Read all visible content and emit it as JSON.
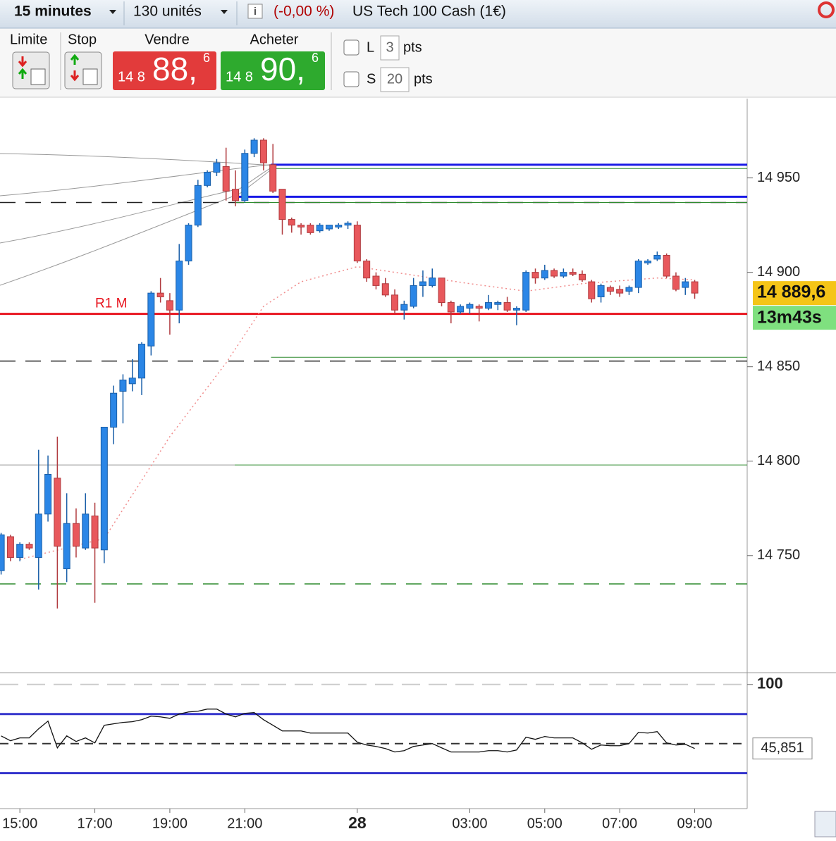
{
  "toolbar": {
    "timeframe": "15 minutes",
    "quantity": "130 unités",
    "change": "(-0,00 %)",
    "instrument": "US Tech 100 Cash (1€)"
  },
  "order_panel": {
    "limit_label": "Limite",
    "stop_label": "Stop",
    "sell": {
      "label": "Vendre",
      "prefix": "14 8",
      "big": "88,",
      "sup": "6"
    },
    "buy": {
      "label": "Acheter",
      "prefix": "14 8",
      "big": "90,",
      "sup": "6"
    },
    "options": [
      {
        "label": "L",
        "value": 3,
        "unit": "pts"
      },
      {
        "label": "S",
        "value": 20,
        "unit": "pts"
      }
    ]
  },
  "chart_data": {
    "type": "candlestick",
    "x": [
      14.5,
      14.75,
      15,
      15.25,
      15.5,
      15.75,
      16,
      16.25,
      16.5,
      16.75,
      17,
      17.25,
      17.5,
      17.75,
      18,
      18.25,
      18.5,
      18.75,
      19,
      19.25,
      19.5,
      19.75,
      20,
      20.25,
      20.5,
      20.75,
      21,
      21.25,
      21.5,
      21.75,
      22,
      22.25,
      22.5,
      22.75,
      23,
      23.25,
      23.5,
      23.75,
      24,
      24.25,
      24.5,
      24.75,
      25,
      25.25,
      25.5,
      25.75,
      26,
      26.25,
      26.5,
      26.75,
      27,
      27.25,
      27.5,
      27.75,
      28,
      28.25,
      28.5,
      28.75,
      29,
      29.25,
      29.5,
      29.75,
      30,
      30.25,
      30.5,
      30.75,
      31,
      31.25,
      31.5,
      31.75,
      32,
      32.25,
      32.5,
      32.75,
      33
    ],
    "open": [
      14742,
      14760,
      14749,
      14756,
      14749,
      14772,
      14791,
      14743,
      14767,
      14754,
      14771,
      14753,
      14818,
      14837,
      14841,
      14844,
      14861,
      14889,
      14885,
      14880,
      14906,
      14925,
      14946,
      14953,
      14956,
      14944,
      14938,
      14963,
      14970,
      14957,
      14944,
      14928,
      14925,
      14925,
      14922,
      14923,
      14924,
      14925,
      14925,
      14906,
      14898,
      14894,
      14888,
      14880,
      14882,
      14893,
      14893,
      14897,
      14884,
      14879,
      14881,
      14882,
      14881,
      14883,
      14884,
      14880,
      14880,
      14900,
      14897,
      14901,
      14898,
      14900,
      14899,
      14895,
      14887,
      14892,
      14891,
      14890,
      14892,
      14905,
      14907,
      14909,
      14898,
      14892,
      14895
    ],
    "high": [
      14762,
      14761,
      14757,
      14757,
      14806,
      14803,
      14813,
      14783,
      14775,
      14783,
      14778,
      14818,
      14840,
      14846,
      14854,
      14863,
      14890,
      14897,
      14889,
      14915,
      14926,
      14949,
      14954,
      14960,
      14966,
      14954,
      14965,
      14971,
      14971,
      14968,
      14944,
      14929,
      14926,
      14926,
      14926,
      14925,
      14926,
      14927,
      14927,
      14907,
      14900,
      14897,
      14891,
      14885,
      14897,
      14901,
      14902,
      14897,
      14885,
      14883,
      14884,
      14883,
      14888,
      14885,
      14887,
      14882,
      14901,
      14902,
      14904,
      14902,
      14902,
      14902,
      14901,
      14896,
      14894,
      14893,
      14893,
      14893,
      14907,
      14907,
      14911,
      14910,
      14900,
      14897,
      14896
    ],
    "low": [
      14740,
      14747,
      14747,
      14753,
      14732,
      14768,
      14722,
      14736,
      14749,
      14753,
      14725,
      14746,
      14809,
      14820,
      14837,
      14835,
      14856,
      14884,
      14867,
      14873,
      14904,
      14924,
      14945,
      14951,
      14938,
      14935,
      14937,
      14961,
      14954,
      14942,
      14920,
      14921,
      14920,
      14920,
      14921,
      14922,
      14923,
      14923,
      14905,
      14895,
      14891,
      14887,
      14878,
      14875,
      14881,
      14887,
      14892,
      14882,
      14873,
      14878,
      14878,
      14874,
      14880,
      14880,
      14879,
      14872,
      14879,
      14894,
      14896,
      14897,
      14897,
      14898,
      14895,
      14884,
      14884,
      14888,
      14887,
      14888,
      14889,
      14904,
      14906,
      14897,
      14890,
      14888,
      14886
    ],
    "close": [
      14761,
      14749,
      14756,
      14754,
      14772,
      14793,
      14755,
      14767,
      14755,
      14772,
      14754,
      14818,
      14836,
      14843,
      14844,
      14862,
      14889,
      14887,
      14880,
      14906,
      14925,
      14946,
      14953,
      14958,
      14943,
      14938,
      14963,
      14970,
      14958,
      14943,
      14928,
      14925,
      14924,
      14921,
      14925,
      14925,
      14925,
      14926,
      14906,
      14897,
      14893,
      14888,
      14880,
      14883,
      14893,
      14895,
      14897,
      14884,
      14879,
      14882,
      14883,
      14881,
      14884,
      14884,
      14880,
      14881,
      14900,
      14897,
      14901,
      14898,
      14900,
      14899,
      14896,
      14886,
      14893,
      14890,
      14889,
      14892,
      14906,
      14906,
      14909,
      14898,
      14891,
      14895,
      14889
    ],
    "up_color": "#2b86e6",
    "down_color": "#e8585c",
    "xlim": [
      14.47,
      34.4
    ],
    "xticks": [
      {
        "value": 15,
        "label": "15:00"
      },
      {
        "value": 17,
        "label": "17:00"
      },
      {
        "value": 19,
        "label": "19:00"
      },
      {
        "value": 21,
        "label": "21:00"
      },
      {
        "value": 24,
        "label": "28"
      },
      {
        "value": 27,
        "label": "03:00"
      },
      {
        "value": 29,
        "label": "05:00"
      },
      {
        "value": 31,
        "label": "07:00"
      },
      {
        "value": 33,
        "label": "09:00"
      }
    ],
    "ylim": [
      14688,
      14992
    ],
    "yticks": [
      {
        "value": 14750,
        "label": "14 750"
      },
      {
        "value": 14800,
        "label": "14 800"
      },
      {
        "value": 14850,
        "label": "14 850"
      },
      {
        "value": 14900,
        "label": "14 900"
      },
      {
        "value": 14950,
        "label": "14 950"
      }
    ],
    "levels": [
      {
        "value": 14957,
        "color": "#1a1ae6",
        "width": 3,
        "from": 21.7
      },
      {
        "value": 14955,
        "color": "#2e8b2e",
        "width": 1,
        "from": 21.7
      },
      {
        "value": 14940,
        "color": "#1a1ae6",
        "width": 3,
        "from": 20.73
      },
      {
        "value": 14937,
        "color": "#222222",
        "width": 1.5,
        "dash": true
      },
      {
        "value": 14937,
        "color": "#2e8b2e",
        "width": 1,
        "from": 20.73
      },
      {
        "value": 14878,
        "color": "#e8141e",
        "width": 3,
        "label": "R1 M"
      },
      {
        "value": 14855,
        "color": "#2e8b2e",
        "width": 1,
        "from": 21.7
      },
      {
        "value": 14853,
        "color": "#222222",
        "width": 1.5,
        "dash": true
      },
      {
        "value": 14798,
        "color": "#999999",
        "width": 1,
        "to": 20.73
      },
      {
        "value": 14798,
        "color": "#2e8b2e",
        "width": 1,
        "from": 20.73
      },
      {
        "value": 14735,
        "color": "#2e8b2e",
        "width": 1.5,
        "dash": true
      }
    ],
    "moving_average": {
      "color": "#f08c8c",
      "x": [
        15,
        17.25,
        19,
        20.5,
        21.5,
        22.5,
        24,
        25,
        27,
        28.5,
        30,
        32,
        33
      ],
      "values": [
        14748,
        14759,
        14813,
        14852,
        14882,
        14895,
        14903,
        14900,
        14894,
        14890,
        14894,
        14897,
        14896
      ]
    },
    "last_price_label": "14 889,6",
    "timer": "13m43s",
    "indicator": {
      "color": "#111111",
      "ylim": [
        -5,
        110
      ],
      "yticks": [
        100
      ],
      "levels": [
        {
          "value": 100,
          "color": "#cccccc",
          "dash": true
        },
        {
          "value": 75,
          "color": "#3434cc"
        },
        {
          "value": 50,
          "color": "#333333",
          "dash": true
        },
        {
          "value": 25,
          "color": "#3434cc"
        }
      ],
      "values": [
        56.5,
        52.4,
        54.8,
        54.8,
        62.5,
        69,
        46.4,
        56.5,
        51.8,
        54.8,
        50.6,
        65.5,
        66.7,
        67.9,
        68.5,
        70.2,
        73.2,
        72.6,
        71.4,
        75,
        76.8,
        77.4,
        79.2,
        79.2,
        75,
        72.6,
        75.6,
        76.2,
        70.2,
        65.5,
        60.7,
        60.7,
        60.7,
        58.9,
        58.9,
        58.9,
        58.9,
        58.9,
        51.2,
        48.8,
        47.6,
        45.8,
        42.9,
        44,
        47.6,
        48.8,
        50,
        46.4,
        42.9,
        42.9,
        42.9,
        42.9,
        44,
        44,
        42.9,
        44.6,
        55.4,
        53.6,
        56,
        54.8,
        54.8,
        54.8,
        50.6,
        45.2,
        48.8,
        48.2,
        48.2,
        50,
        59.5,
        58.9,
        60.1,
        50.6,
        48.8,
        49.4,
        45.851
      ],
      "last_value_label": "45,851"
    }
  }
}
